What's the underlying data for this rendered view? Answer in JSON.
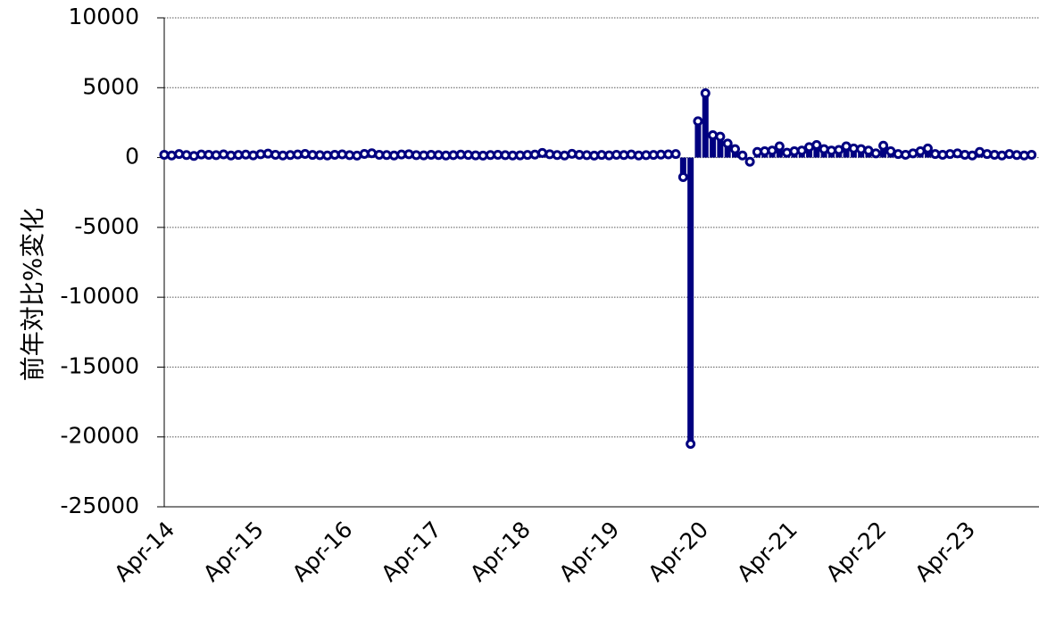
{
  "chart_data": {
    "type": "bar",
    "y_label": "前年対比%変化",
    "color": "#000080",
    "grid": true,
    "categories": [
      "Apr-14",
      null,
      null,
      null,
      null,
      null,
      null,
      null,
      null,
      null,
      null,
      null,
      "Apr-15",
      null,
      null,
      null,
      null,
      null,
      null,
      null,
      null,
      null,
      null,
      null,
      "Apr-16",
      null,
      null,
      null,
      null,
      null,
      null,
      null,
      null,
      null,
      null,
      null,
      "Apr-17",
      null,
      null,
      null,
      null,
      null,
      null,
      null,
      null,
      null,
      null,
      null,
      "Apr-18",
      null,
      null,
      null,
      null,
      null,
      null,
      null,
      null,
      null,
      null,
      null,
      "Apr-19",
      null,
      null,
      null,
      null,
      null,
      null,
      null,
      null,
      null,
      null,
      null,
      "Apr-20",
      null,
      null,
      null,
      null,
      null,
      null,
      null,
      null,
      null,
      null,
      null,
      "Apr-21",
      null,
      null,
      null,
      null,
      null,
      null,
      null,
      null,
      null,
      null,
      null,
      "Apr-22",
      null,
      null,
      null,
      null,
      null,
      null,
      null,
      null,
      null,
      null,
      null,
      "Apr-23",
      null,
      null,
      null,
      null,
      null,
      null,
      null,
      null,
      null
    ],
    "values": [
      200,
      150,
      250,
      180,
      120,
      220,
      200,
      170,
      230,
      150,
      190,
      210,
      160,
      240,
      280,
      200,
      150,
      180,
      220,
      260,
      190,
      170,
      150,
      200,
      230,
      170,
      140,
      260,
      310,
      200,
      180,
      150,
      220,
      240,
      170,
      160,
      200,
      180,
      150,
      170,
      210,
      190,
      160,
      140,
      180,
      200,
      170,
      150,
      160,
      190,
      210,
      330,
      240,
      180,
      150,
      270,
      200,
      170,
      140,
      190,
      160,
      200,
      180,
      220,
      150,
      170,
      190,
      210,
      230,
      250,
      -1400,
      -20500,
      2600,
      4600,
      1600,
      1500,
      1000,
      600,
      150,
      -300,
      400,
      450,
      500,
      800,
      350,
      450,
      500,
      750,
      900,
      600,
      500,
      550,
      800,
      650,
      600,
      500,
      300,
      850,
      450,
      250,
      200,
      300,
      450,
      650,
      250,
      200,
      250,
      300,
      200,
      150,
      400,
      250,
      200,
      150,
      250,
      180,
      150,
      200
    ],
    "ylim": [
      -25000,
      10000
    ],
    "yticks": [
      -25000,
      -20000,
      -15000,
      -10000,
      -5000,
      0,
      5000,
      10000
    ]
  }
}
